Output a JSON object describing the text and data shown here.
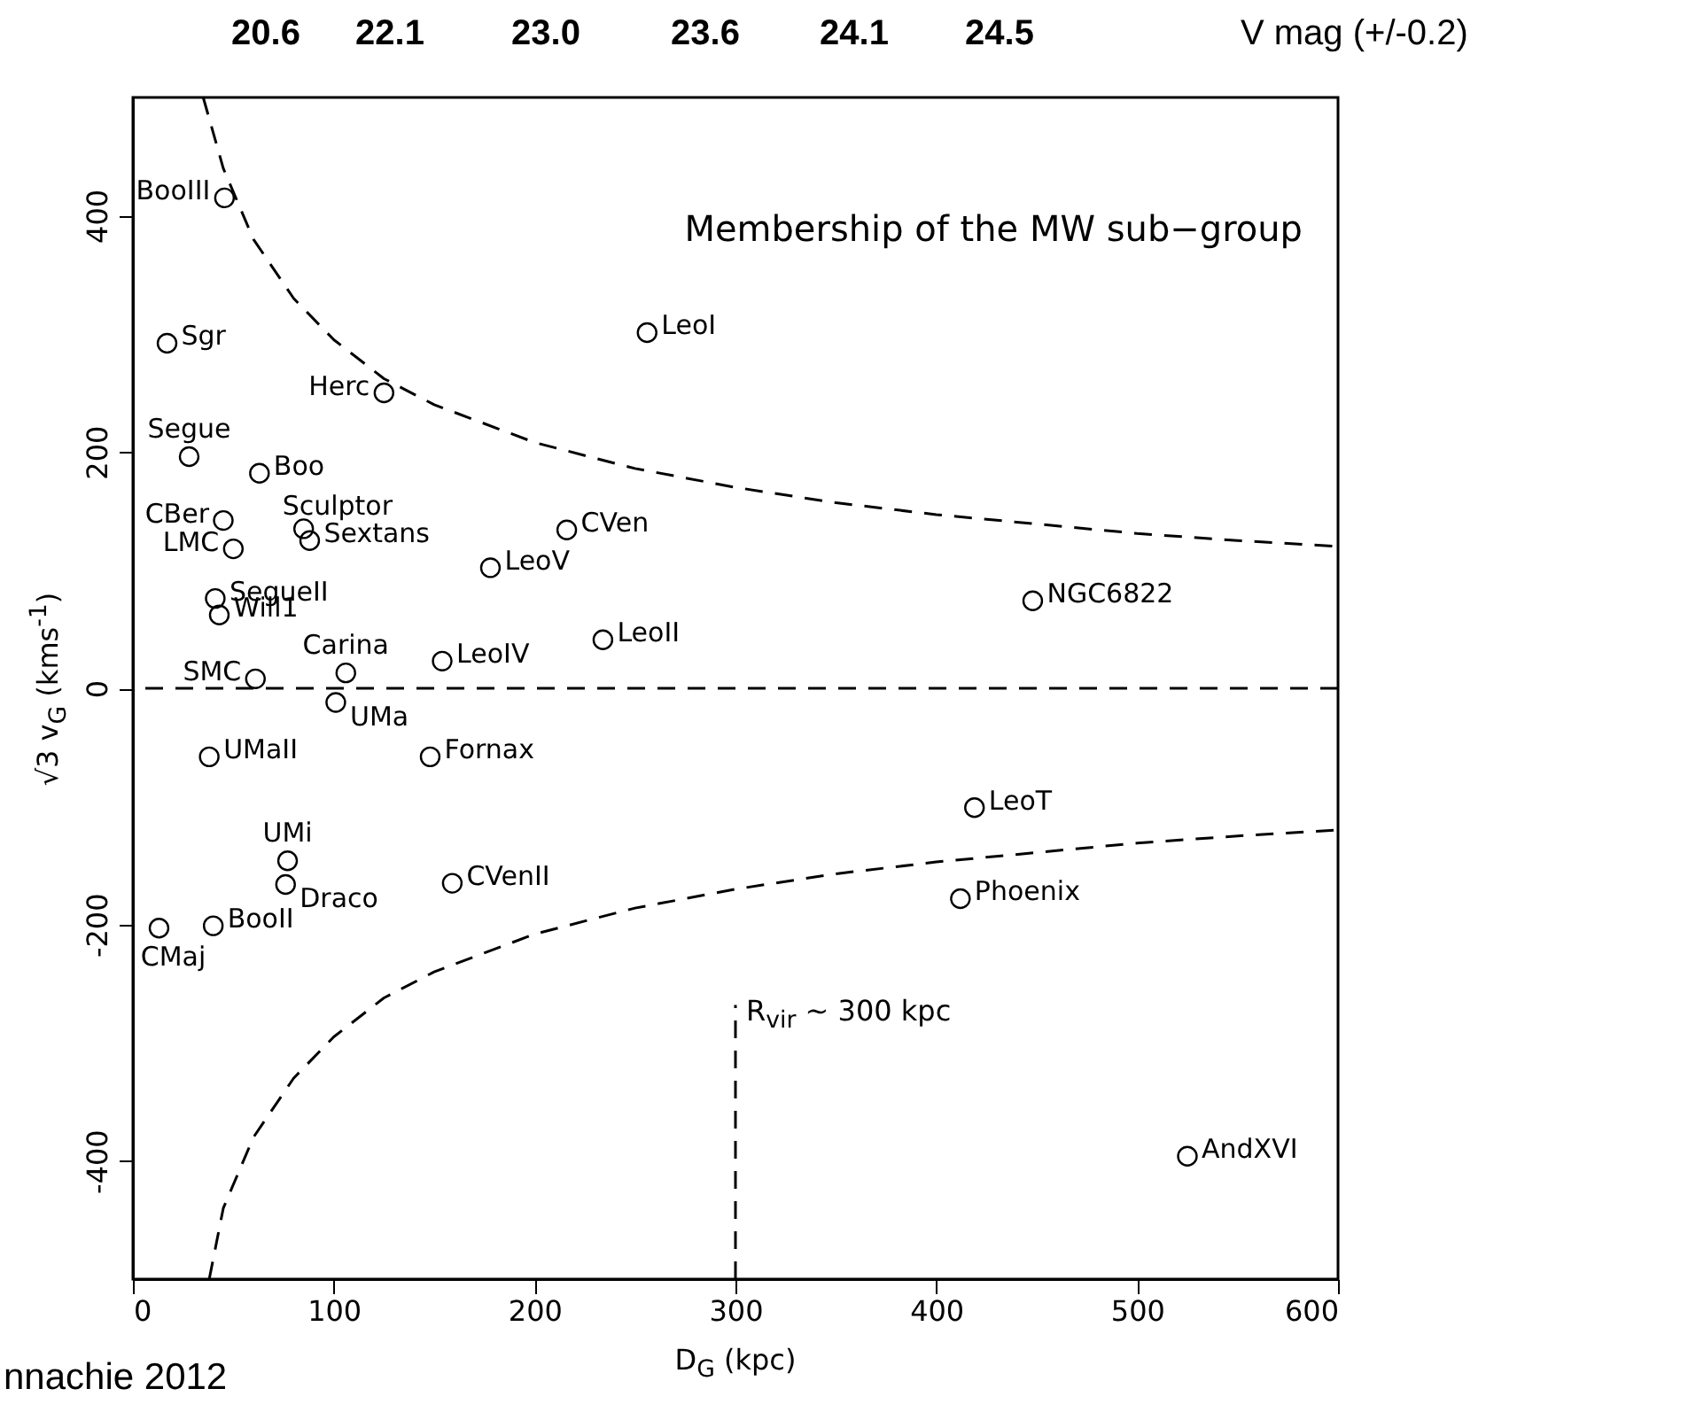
{
  "chart_data": {
    "type": "scatter",
    "title": "Membership of the MW sub−group",
    "xlabel": "D$_{G}$ (kpc)",
    "ylabel": "√3 v$_{G}$ (kms$^{-1}$)",
    "marker": "circle",
    "xlim": [
      0,
      600
    ],
    "ylim": [
      -500,
      500
    ],
    "xticks": [
      0,
      100,
      200,
      300,
      400,
      500,
      600
    ],
    "yticks": [
      -400,
      -200,
      0,
      200,
      400
    ],
    "ref_lines": [
      {
        "axis": "y",
        "value": 0,
        "line_style": "dashed",
        "color": "#000000"
      }
    ],
    "annotations": [
      "20.6",
      "22.1",
      "23.0",
      "23.6",
      "24.1",
      "24.5",
      "V mag (+/-0.2)",
      {
        "text": "R$_{vir}$ ~ 300 kpc",
        "x": 300,
        "y": -268
      },
      "nnachie 2012"
    ],
    "series": [
      {
        "name": "BooIII",
        "color": "#000000",
        "x": [
          45.6
        ],
        "values": [
          415
        ]
      },
      {
        "name": "Sgr",
        "color": "#000000",
        "x": [
          17
        ],
        "values": [
          292
        ]
      },
      {
        "name": "Herc",
        "color": "#000000",
        "x": [
          125
        ],
        "values": [
          250
        ]
      },
      {
        "name": "Segue",
        "color": "#000000",
        "x": [
          28
        ],
        "values": [
          196
        ]
      },
      {
        "name": "Boo",
        "color": "#000000",
        "x": [
          63
        ],
        "values": [
          182
        ]
      },
      {
        "name": "CBer",
        "color": "#000000",
        "x": [
          45
        ],
        "values": [
          142
        ]
      },
      {
        "name": "Sculptor",
        "color": "#000000",
        "x": [
          85
        ],
        "values": [
          135
        ]
      },
      {
        "name": "Sextans",
        "color": "#000000",
        "x": [
          88
        ],
        "values": [
          125
        ]
      },
      {
        "name": "LMC",
        "color": "#000000",
        "x": [
          50
        ],
        "values": [
          118
        ]
      },
      {
        "name": "LeoV",
        "color": "#000000",
        "x": [
          178
        ],
        "values": [
          102
        ]
      },
      {
        "name": "CVen",
        "color": "#000000",
        "x": [
          216
        ],
        "values": [
          134
        ]
      },
      {
        "name": "SegueII",
        "color": "#000000",
        "x": [
          41
        ],
        "values": [
          76
        ]
      },
      {
        "name": "Will1",
        "color": "#000000",
        "x": [
          43
        ],
        "values": [
          62
        ]
      },
      {
        "name": "Carina",
        "color": "#000000",
        "x": [
          106
        ],
        "values": [
          13
        ]
      },
      {
        "name": "SMC",
        "color": "#000000",
        "x": [
          61
        ],
        "values": [
          8
        ]
      },
      {
        "name": "LeoIV",
        "color": "#000000",
        "x": [
          154
        ],
        "values": [
          23
        ]
      },
      {
        "name": "LeoII",
        "color": "#000000",
        "x": [
          234
        ],
        "values": [
          41
        ]
      },
      {
        "name": "LeoI",
        "color": "#000000",
        "x": [
          256
        ],
        "values": [
          301
        ]
      },
      {
        "name": "UMa",
        "color": "#000000",
        "x": [
          101
        ],
        "values": [
          -12
        ]
      },
      {
        "name": "UMaII",
        "color": "#000000",
        "x": [
          38
        ],
        "values": [
          -58
        ]
      },
      {
        "name": "Fornax",
        "color": "#000000",
        "x": [
          148
        ],
        "values": [
          -58
        ]
      },
      {
        "name": "UMi",
        "color": "#000000",
        "x": [
          77
        ],
        "values": [
          -146
        ]
      },
      {
        "name": "Draco",
        "color": "#000000",
        "x": [
          76
        ],
        "values": [
          -166
        ]
      },
      {
        "name": "CVenII",
        "color": "#000000",
        "x": [
          159
        ],
        "values": [
          -165
        ]
      },
      {
        "name": "CMaj",
        "color": "#000000",
        "x": [
          13
        ],
        "values": [
          -203
        ]
      },
      {
        "name": "BooII",
        "color": "#000000",
        "x": [
          40
        ],
        "values": [
          -201
        ]
      },
      {
        "name": "NGC6822",
        "color": "#000000",
        "x": [
          448
        ],
        "values": [
          74
        ]
      },
      {
        "name": "LeoT",
        "color": "#000000",
        "x": [
          419
        ],
        "values": [
          -101
        ]
      },
      {
        "name": "Phoenix",
        "color": "#000000",
        "x": [
          412
        ],
        "values": [
          -178
        ]
      },
      {
        "name": "AndXVI",
        "color": "#000000",
        "x": [
          525
        ],
        "values": [
          -396
        ]
      },
      {
        "type": "line",
        "line_style": "dashed",
        "marker": "none",
        "color": "#000000",
        "x": [
          35,
          45,
          60,
          80,
          100,
          125,
          150,
          200,
          250,
          300,
          350,
          400,
          450,
          500,
          550,
          600
        ],
        "values": [
          500,
          440,
          380,
          330,
          295,
          262,
          240,
          208,
          186,
          170,
          157,
          147,
          139,
          131,
          125,
          120
        ]
      },
      {
        "type": "line",
        "line_style": "dashed",
        "marker": "none",
        "color": "#000000",
        "x": [
          38,
          45,
          60,
          80,
          100,
          125,
          150,
          200,
          250,
          300,
          350,
          400,
          450,
          500,
          550,
          600
        ],
        "values": [
          -500,
          -440,
          -380,
          -330,
          -295,
          -262,
          -240,
          -208,
          -186,
          -170,
          -157,
          -147,
          -139,
          -131,
          -125,
          -120
        ]
      },
      {
        "type": "line",
        "line_style": "dashed",
        "marker": "none",
        "color": "#000000",
        "x": [
          300,
          300
        ],
        "values": [
          -500,
          -268
        ]
      }
    ]
  }
}
